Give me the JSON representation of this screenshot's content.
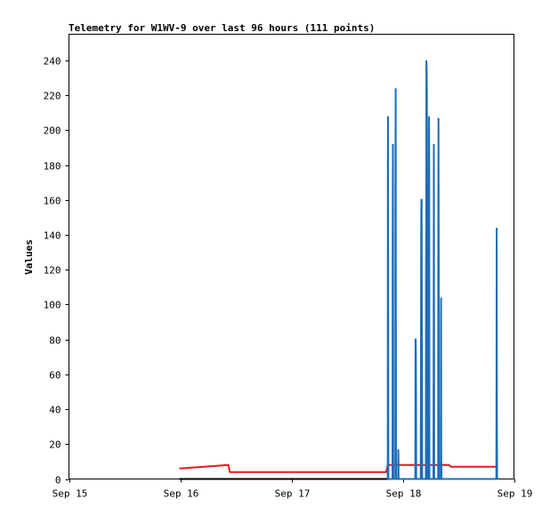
{
  "chart_data": {
    "type": "line",
    "title": "Telemetry for W1WV-9 over last 96 hours (111 points)",
    "xlabel": "",
    "ylabel": "Values",
    "xlim": [
      "Sep 15",
      "Sep 19"
    ],
    "xticks": [
      "Sep 15",
      "Sep 16",
      "Sep 17",
      "Sep 18",
      "Sep 19"
    ],
    "ylim": [
      0,
      255
    ],
    "yticks": [
      0,
      20,
      40,
      60,
      80,
      100,
      120,
      140,
      160,
      180,
      200,
      220,
      240
    ],
    "grid": false,
    "colors": {
      "blue": "#1f6cb8",
      "red": "#e31a1c",
      "black": "#000000"
    },
    "series": [
      {
        "color": "blue",
        "x": [
          "Sep 17 20:46",
          "Sep 17 20:48",
          "Sep 17 20:50",
          "Sep 17 20:53",
          "Sep 17 20:55",
          "Sep 17 20:58",
          "Sep 17 21:48",
          "Sep 17 21:50",
          "Sep 17 21:53",
          "Sep 17 21:55",
          "Sep 17 21:58",
          "Sep 17 22:00",
          "Sep 17 22:24",
          "Sep 17 22:26",
          "Sep 17 22:29",
          "Sep 17 22:31",
          "Sep 17 22:34",
          "Sep 17 22:36",
          "Sep 17 22:38",
          "Sep 17 22:41",
          "Sep 17 22:58",
          "Sep 17 23:00",
          "Sep 17 23:02",
          "Sep 17 23:05",
          "Sep 17 23:07",
          "Sep 17 23:10",
          "Sep 17 23:24",
          "Sep 17 23:26",
          "Sep 17 23:29",
          "Sep 17 23:31",
          "Sep 17 23:34",
          "Sep 18 02:41",
          "Sep 18 02:43",
          "Sep 18 02:46",
          "Sep 18 02:48",
          "Sep 18 02:50",
          "Sep 18 02:53",
          "Sep 18 02:55",
          "Sep 18 02:58",
          "Sep 18 03:50",
          "Sep 18 03:53",
          "Sep 18 03:55",
          "Sep 18 03:58",
          "Sep 18 04:00",
          "Sep 18 04:02",
          "Sep 18 04:05",
          "Sep 18 04:07",
          "Sep 18 04:10",
          "Sep 18 04:12",
          "Sep 18 04:14",
          "Sep 18 04:58",
          "Sep 18 05:00",
          "Sep 18 05:02",
          "Sep 18 05:05",
          "Sep 18 05:07",
          "Sep 18 05:10",
          "Sep 18 05:12",
          "Sep 18 05:14",
          "Sep 18 05:17",
          "Sep 18 05:19",
          "Sep 18 05:22",
          "Sep 18 05:34",
          "Sep 18 05:36",
          "Sep 18 05:38",
          "Sep 18 05:41",
          "Sep 18 05:43",
          "Sep 18 05:46",
          "Sep 18 06:36",
          "Sep 18 06:38",
          "Sep 18 06:41",
          "Sep 18 06:43",
          "Sep 18 06:46",
          "Sep 18 06:48",
          "Sep 18 06:50",
          "Sep 18 07:38",
          "Sep 18 07:41",
          "Sep 18 07:43",
          "Sep 18 07:46",
          "Sep 18 07:48",
          "Sep 18 08:12",
          "Sep 18 08:14",
          "Sep 18 08:17",
          "Sep 18 08:19",
          "Sep 18 08:22",
          "Sep 18 09:50",
          "Sep 18 09:53",
          "Sep 18 09:55",
          "Sep 18 09:58",
          "Sep 18 10:00",
          "Sep 18 10:02",
          "Sep 18 10:05",
          "Sep 18 10:10",
          "Sep 18 10:12",
          "Sep 18 10:14",
          "Sep 18 10:17",
          "Sep 18 10:19",
          "Sep 18 20:12",
          "Sep 18 20:14",
          "Sep 18 20:17",
          "Sep 18 20:19",
          "Sep 18 20:22",
          "Sep 18 20:24"
        ],
        "y": [
          0,
          177,
          208,
          55,
          0,
          0,
          0,
          140,
          192,
          150,
          0,
          0,
          0,
          168,
          224,
          112,
          0,
          0,
          0,
          0,
          0,
          0,
          17,
          13,
          0,
          0,
          0,
          0,
          0,
          0,
          0,
          0,
          0,
          80,
          80,
          73,
          50,
          0,
          0,
          0,
          0,
          50,
          120,
          148,
          160,
          160,
          120,
          80,
          0,
          0,
          0,
          0,
          120,
          160,
          240,
          236,
          226,
          200,
          80,
          0,
          0,
          0,
          0,
          156,
          208,
          175,
          0,
          0,
          0,
          98,
          192,
          118,
          0,
          0,
          0,
          150,
          207,
          120,
          0,
          0,
          84,
          104,
          16,
          0,
          0,
          0,
          0,
          0,
          0,
          0,
          0,
          0,
          0,
          0,
          0,
          0,
          0,
          55,
          144,
          40,
          0,
          0
        ]
      },
      {
        "color": "red",
        "x": [
          "Sep 15 23:50",
          "Sep 16 10:24",
          "Sep 16 10:43",
          "Sep 17 20:24",
          "Sep 17 20:48",
          "Sep 18 09:58",
          "Sep 18 10:24",
          "Sep 18 20:24"
        ],
        "y": [
          6,
          8,
          4,
          4,
          8,
          8,
          7,
          7
        ]
      },
      {
        "color": "black",
        "x": [
          "Sep 15 23:50",
          "Sep 18 20:24"
        ],
        "y": [
          0,
          0
        ]
      }
    ]
  }
}
